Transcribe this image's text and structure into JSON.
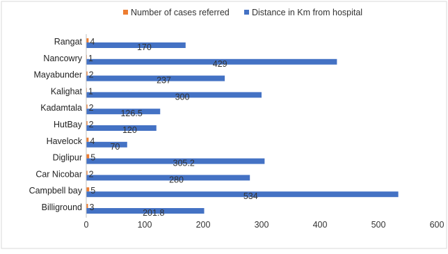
{
  "chart_data": {
    "type": "bar",
    "orientation": "horizontal",
    "categories": [
      "Rangat",
      "Nancowry",
      "Mayabunder",
      "Kalighat",
      "Kadamtala",
      "HutBay",
      "Havelock",
      "Diglipur",
      "Car Nicobar",
      "Campbell bay",
      "Billiground"
    ],
    "series": [
      {
        "name": "Number of cases referred",
        "color": "#ED7D31",
        "values": [
          4,
          1,
          2,
          1,
          2,
          2,
          4,
          5,
          2,
          5,
          3
        ],
        "labels": [
          "4",
          "1",
          "2",
          "1",
          "2",
          "2",
          "4",
          "5",
          "2",
          "5",
          "3"
        ]
      },
      {
        "name": "Distance in Km from hospital",
        "color": "#4472C4",
        "values": [
          170,
          429,
          237,
          300,
          126.5,
          120,
          70,
          305.2,
          280,
          534,
          201.8
        ],
        "labels": [
          "170",
          "429",
          "237",
          "300",
          "126.5",
          "120",
          "70",
          "305.2",
          "280",
          "534",
          "201.8"
        ]
      }
    ],
    "x_ticks": [
      "0",
      "100",
      "200",
      "300",
      "400",
      "500",
      "600"
    ],
    "xlim": [
      0,
      600
    ],
    "grid": false,
    "legend_position": "top"
  }
}
